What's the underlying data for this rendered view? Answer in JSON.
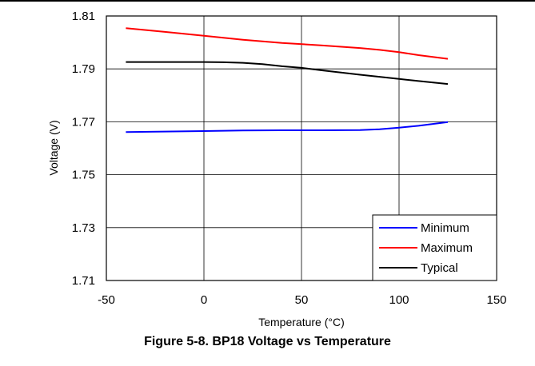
{
  "caption": "Figure 5-8. BP18 Voltage vs Temperature",
  "chart_data": {
    "type": "line",
    "title": "",
    "xlabel": "Temperature (°C)",
    "ylabel": "Voltage (V)",
    "xlim": [
      -50,
      150
    ],
    "ylim": [
      1.71,
      1.81
    ],
    "xticks": [
      -50,
      0,
      50,
      100,
      150
    ],
    "yticks": [
      1.71,
      1.73,
      1.75,
      1.77,
      1.79,
      1.81
    ],
    "xtick_labels": [
      "-50",
      "0",
      "50",
      "100",
      "150"
    ],
    "ytick_labels": [
      "1.71",
      "1.73",
      "1.75",
      "1.77",
      "1.79",
      "1.81"
    ],
    "grid": true,
    "legend_position": "bottom-right",
    "series": [
      {
        "name": "Minimum",
        "color": "#0000ff",
        "x": [
          -40,
          -20,
          0,
          20,
          40,
          60,
          80,
          90,
          100,
          110,
          125
        ],
        "y": [
          1.7661,
          1.7663,
          1.7665,
          1.7667,
          1.7668,
          1.7668,
          1.7669,
          1.7672,
          1.7678,
          1.7685,
          1.7699
        ]
      },
      {
        "name": "Maximum",
        "color": "#ff0000",
        "x": [
          -40,
          -20,
          0,
          20,
          40,
          60,
          80,
          90,
          100,
          110,
          125
        ],
        "y": [
          1.8054,
          1.804,
          1.8025,
          1.801,
          1.7998,
          1.7989,
          1.7979,
          1.7972,
          1.7963,
          1.7952,
          1.7938
        ]
      },
      {
        "name": "Typical",
        "color": "#000000",
        "x": [
          -40,
          -20,
          0,
          10,
          20,
          30,
          40,
          50,
          60,
          80,
          100,
          110,
          125
        ],
        "y": [
          1.7926,
          1.7926,
          1.7926,
          1.7925,
          1.7923,
          1.7918,
          1.791,
          1.7904,
          1.7895,
          1.7878,
          1.7862,
          1.7854,
          1.7843
        ]
      }
    ]
  }
}
